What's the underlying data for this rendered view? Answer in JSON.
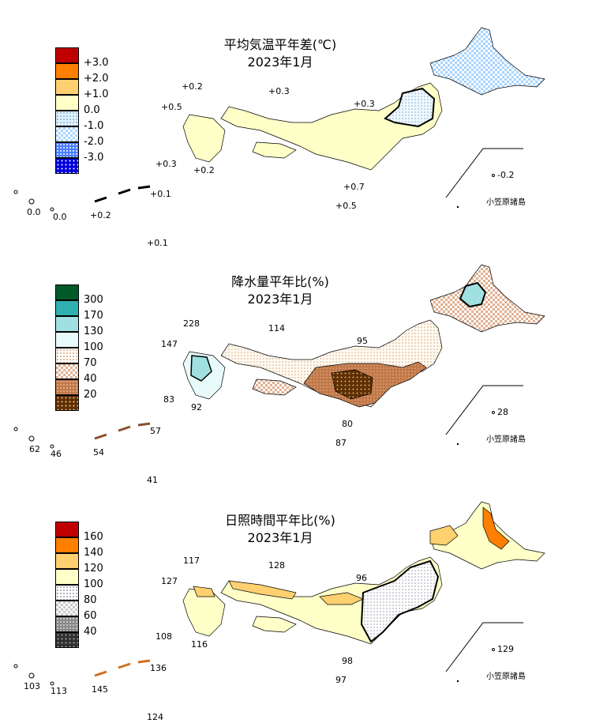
{
  "panels": [
    {
      "title1": "平均気温平年差(℃)",
      "title2": "2023年1月",
      "legend": [
        {
          "label": "+3.0",
          "color": "#c00000"
        },
        {
          "label": "+2.0",
          "color": "#ff8000"
        },
        {
          "label": "+1.0",
          "color": "#ffd070"
        },
        {
          "label": "0.0",
          "color": "#ffffc8"
        },
        {
          "label": "-1.0",
          "color": "#e0f4ff"
        },
        {
          "label": "-2.0",
          "color": "#a8d4ff"
        },
        {
          "label": "-3.0",
          "color": "#4a7dff"
        },
        {
          "label": "",
          "color": "#0000e0"
        }
      ],
      "values": [
        "+0.2",
        "+0.3",
        "+0.5",
        "+0.3",
        "+0.3",
        "+0.2",
        "+0.7",
        "+0.5",
        "+0.1",
        "0.0",
        "0.0",
        "+0.2",
        "+0.1",
        "-0.2"
      ],
      "ogasawara": "小笠原諸島"
    },
    {
      "title1": "降水量平年比(%)",
      "title2": "2023年1月",
      "legend": [
        {
          "label": "300",
          "color": "#005a28"
        },
        {
          "label": "170",
          "color": "#30b0b0"
        },
        {
          "label": "130",
          "color": "#a0e0e0"
        },
        {
          "label": "100",
          "color": "#e8fafa"
        },
        {
          "label": "70",
          "color": "#fff8e8"
        },
        {
          "label": "40",
          "color": "#f0c8a8"
        },
        {
          "label": "20",
          "color": "#c07848"
        },
        {
          "label": "",
          "color": "#603000"
        }
      ],
      "values": [
        "228",
        "114",
        "147",
        "95",
        "83",
        "92",
        "80",
        "87",
        "57",
        "62",
        "46",
        "54",
        "41",
        "28"
      ],
      "ogasawara": "小笠原諸島"
    },
    {
      "title1": "日照時間平年比(%)",
      "title2": "2023年1月",
      "legend": [
        {
          "label": "160",
          "color": "#c00000"
        },
        {
          "label": "140",
          "color": "#ff8000"
        },
        {
          "label": "120",
          "color": "#ffd070"
        },
        {
          "label": "100",
          "color": "#ffffc8"
        },
        {
          "label": "80",
          "color": "#ffffff"
        },
        {
          "label": "60",
          "color": "#d0d0d0"
        },
        {
          "label": "40",
          "color": "#888888"
        },
        {
          "label": "",
          "color": "#303030"
        }
      ],
      "values": [
        "117",
        "128",
        "127",
        "96",
        "108",
        "116",
        "98",
        "97",
        "136",
        "103",
        "113",
        "145",
        "124",
        "129"
      ],
      "ogasawara": "小笠原諸島"
    }
  ]
}
